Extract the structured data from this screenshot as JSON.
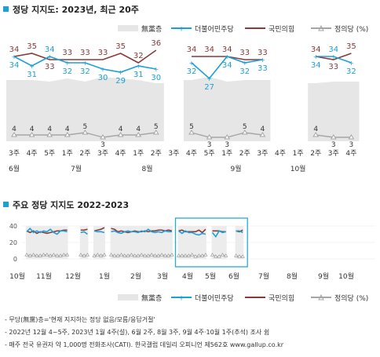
{
  "title1": "정당 지지도: 2023년, 최근 20주",
  "title2": "주요 정당 지지도 2022-2023",
  "legend": {
    "none": "無黨층",
    "dem": "더불어민주당",
    "ppp": "국민의힘",
    "jp": "정의당 (%)"
  },
  "colors": {
    "none": "#e6e6e6",
    "dem": "#1ba0d8",
    "ppp": "#8b3a3a",
    "jp": "#a6a6a6",
    "accent": "#1ba0d8",
    "frame": "#2aa9d6"
  },
  "footnotes": [
    "- 무당(無黨)층='현재 지지하는 정당 없음/모름/응답거절'",
    "- 2022년 12월 4~5주, 2023년 1월 4주(설), 6월 2주, 8월 3주, 9월 4주·10월 1주(추석) 조사 쉼",
    "- 매주 전국 유권자 약 1,000명 전화조사(CATI). 한국갤럽 데일리 오피니언 제562호 www.gallup.co.kr"
  ],
  "chart_data": [
    {
      "type": "line",
      "title": "정당 지지도: 2023년, 최근 20주",
      "categories": [
        "3주",
        "4주",
        "5주",
        "1주",
        "2주",
        "3주",
        "4주",
        "1주",
        "2주",
        "3주",
        "4주",
        "5주",
        "1주",
        "2주",
        "3주",
        "4주",
        "1주",
        "2주",
        "3주",
        "4주"
      ],
      "months": [
        {
          "label": "6월",
          "at": 0
        },
        {
          "label": "7월",
          "at": 3.5
        },
        {
          "label": "8월",
          "at": 7.5
        },
        {
          "label": "9월",
          "at": 12.5
        },
        {
          "label": "10월",
          "at": 16
        }
      ],
      "series": [
        {
          "name": "더불어민주당",
          "values": [
            34,
            31,
            34,
            32,
            32,
            30,
            29,
            31,
            30,
            null,
            32,
            27,
            34,
            32,
            33,
            null,
            null,
            34,
            34,
            32
          ]
        },
        {
          "name": "국민의힘",
          "values": [
            34,
            35,
            33,
            33,
            33,
            33,
            35,
            32,
            36,
            null,
            34,
            34,
            34,
            33,
            33,
            null,
            null,
            34,
            33,
            35
          ]
        },
        {
          "name": "정의당",
          "values": [
            4,
            4,
            4,
            4,
            5,
            3,
            4,
            4,
            5,
            null,
            5,
            3,
            3,
            5,
            4,
            null,
            null,
            4,
            3,
            3
          ]
        },
        {
          "name": "無黨층",
          "values": [
            29,
            29,
            28,
            30,
            28,
            31,
            30,
            29,
            27,
            null,
            29,
            31,
            28,
            29,
            29,
            null,
            null,
            27,
            28,
            28
          ]
        }
      ]
    },
    {
      "type": "line",
      "title": "주요 정당 지지도 2022-2023",
      "yticks": [
        0,
        20,
        40
      ],
      "ylim": [
        0,
        40
      ],
      "months": [
        "10월",
        "11월",
        "12월",
        "1월",
        "2월",
        "3월",
        "4월",
        "5월",
        "6월",
        "7월",
        "8월",
        "9월",
        "10월"
      ],
      "series": [
        {
          "name": "더불어민주당",
          "values": [
            33,
            37,
            32,
            34,
            32,
            34,
            33,
            36,
            32,
            30,
            34,
            34,
            33,
            null,
            null,
            null,
            32,
            33,
            30,
            null,
            34,
            33,
            33,
            32,
            null,
            33,
            34,
            32,
            31,
            33,
            34,
            33,
            33,
            32,
            34,
            33,
            36,
            33,
            32,
            33,
            32,
            34,
            33,
            33,
            null,
            34,
            31,
            34,
            32,
            32,
            30,
            29,
            31,
            30,
            null,
            32,
            27,
            34,
            32,
            33,
            null,
            null,
            34,
            34,
            32
          ]
        },
        {
          "name": "국민의힘",
          "values": [
            34,
            32,
            34,
            31,
            33,
            32,
            31,
            32,
            33,
            34,
            34,
            35,
            35,
            null,
            null,
            null,
            35,
            35,
            36,
            null,
            34,
            35,
            36,
            38,
            null,
            37,
            36,
            33,
            34,
            33,
            32,
            33,
            34,
            33,
            33,
            34,
            33,
            34,
            34,
            35,
            35,
            34,
            35,
            34,
            null,
            34,
            35,
            33,
            33,
            33,
            33,
            35,
            32,
            36,
            null,
            34,
            34,
            34,
            33,
            33,
            null,
            null,
            34,
            33,
            35
          ]
        },
        {
          "name": "정의당",
          "values": [
            5,
            4,
            5,
            4,
            4,
            5,
            5,
            4,
            5,
            4,
            4,
            5,
            5,
            null,
            null,
            null,
            5,
            4,
            5,
            null,
            4,
            5,
            4,
            5,
            null,
            5,
            4,
            4,
            5,
            4,
            4,
            5,
            4,
            4,
            5,
            4,
            4,
            5,
            4,
            4,
            5,
            4,
            4,
            5,
            null,
            4,
            4,
            4,
            4,
            5,
            3,
            4,
            4,
            5,
            null,
            5,
            3,
            3,
            5,
            4,
            null,
            null,
            4,
            3,
            3
          ]
        },
        {
          "name": "無黨층",
          "values": [
            26,
            25,
            27,
            28,
            27,
            28,
            27,
            26,
            28,
            29,
            28,
            26,
            26,
            null,
            null,
            null,
            27,
            27,
            28,
            null,
            28,
            27,
            26,
            25,
            null,
            26,
            26,
            28,
            28,
            29,
            29,
            28,
            27,
            29,
            27,
            28,
            26,
            27,
            28,
            28,
            27,
            28,
            27,
            27,
            null,
            29,
            29,
            28,
            30,
            28,
            31,
            30,
            29,
            27,
            null,
            29,
            31,
            28,
            29,
            29,
            null,
            null,
            27,
            28,
            28
          ]
        }
      ]
    }
  ]
}
